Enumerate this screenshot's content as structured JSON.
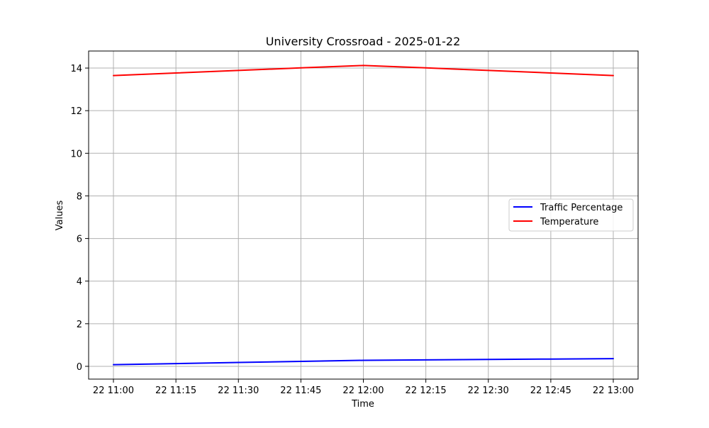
{
  "chart_data": {
    "type": "line",
    "title": "University Crossroad - 2025-01-22",
    "xlabel": "Time",
    "ylabel": "Values",
    "x": [
      "22 11:00",
      "22 11:15",
      "22 11:30",
      "22 11:45",
      "22 12:00",
      "22 12:15",
      "22 12:30",
      "22 12:45",
      "22 13:00"
    ],
    "xticks": [
      "22 11:00",
      "22 11:15",
      "22 11:30",
      "22 11:45",
      "22 12:00",
      "22 12:15",
      "22 12:30",
      "22 12:45",
      "22 13:00"
    ],
    "yticks": [
      0,
      2,
      4,
      6,
      8,
      10,
      12,
      14
    ],
    "ylim": [
      -0.6,
      14.8
    ],
    "grid": true,
    "legend_position": "center-right",
    "series": [
      {
        "name": "Traffic Percentage",
        "color": "#0000ff",
        "values": [
          0.08,
          0.13,
          0.18,
          0.23,
          0.28,
          0.3,
          0.32,
          0.34,
          0.36
        ]
      },
      {
        "name": "Temperature",
        "color": "#ff0000",
        "values": [
          13.65,
          13.77,
          13.89,
          14.01,
          14.12,
          14.01,
          13.89,
          13.77,
          13.65
        ]
      }
    ]
  }
}
